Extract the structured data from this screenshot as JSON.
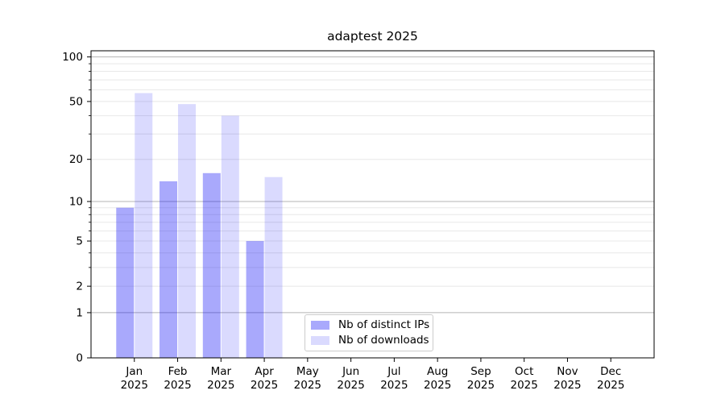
{
  "chart_data": {
    "type": "bar",
    "title": "adaptest 2025",
    "categories": [
      "Jan",
      "Feb",
      "Mar",
      "Apr",
      "May",
      "Jun",
      "Jul",
      "Aug",
      "Sep",
      "Oct",
      "Nov",
      "Dec"
    ],
    "category_year": "2025",
    "series": [
      {
        "name": "Nb of distinct IPs",
        "color": "rgba(8,8,246,0.35)",
        "values": [
          9,
          14,
          16,
          5,
          0,
          0,
          0,
          0,
          0,
          0,
          0,
          0
        ]
      },
      {
        "name": "Nb of downloads",
        "color": "rgba(8,8,246,0.15)",
        "values": [
          57,
          48,
          40,
          15,
          0,
          0,
          0,
          0,
          0,
          0,
          0,
          0
        ]
      }
    ],
    "xlabel": "",
    "ylabel": "",
    "y_axis": {
      "scale": "log10(1+x)",
      "ylim": [
        0,
        110
      ],
      "tick_labels": [
        0,
        1,
        2,
        5,
        10,
        20,
        50,
        100
      ],
      "major_gridlines": [
        1,
        10,
        100
      ],
      "minor_gridlines": [
        2,
        3,
        4,
        5,
        6,
        7,
        8,
        9,
        20,
        30,
        40,
        50,
        60,
        70,
        80,
        90
      ]
    },
    "grid": true,
    "legend_position": "bottom-center"
  },
  "colors": {
    "grid_minor": "#e8e8e8",
    "grid_major": "#b5b5b5",
    "spine": "#000000",
    "bar_dark_flat": "#a8a8f8",
    "bar_light_flat": "#d9d9fa"
  }
}
